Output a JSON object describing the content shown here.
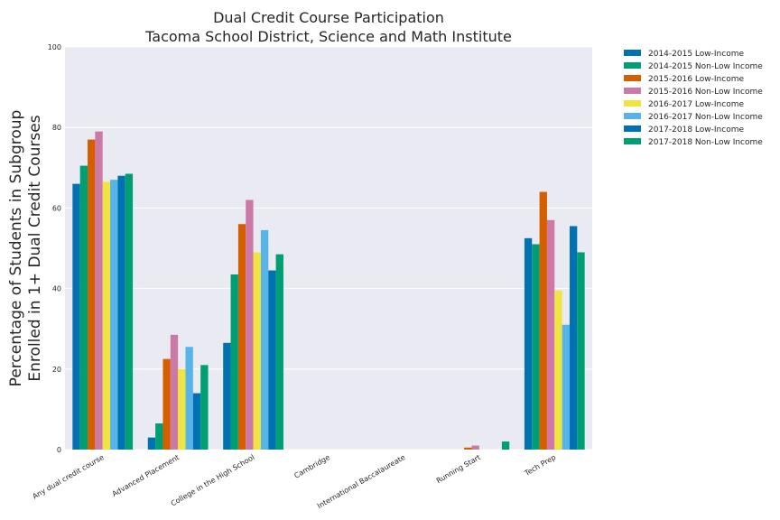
{
  "chart_data": {
    "type": "bar",
    "title": "Dual Credit Course Participation",
    "subtitle": "Tacoma School District, Science and Math Institute",
    "ylabel_line1": "Percentage of Students in Subgroup",
    "ylabel_line2": "Enrolled in 1+ Dual Credit Courses",
    "xlabel": "",
    "ylim": [
      0,
      100
    ],
    "yticks": [
      "0",
      "20",
      "40",
      "60",
      "80",
      "100"
    ],
    "grid": true,
    "legend_position": "outside-top-right",
    "categories": [
      "Any dual credit course",
      "Advanced Placement",
      "College in the High School",
      "Cambridge",
      "International Baccalaureate",
      "Running Start",
      "Tech Prep"
    ],
    "series": [
      {
        "name": "2014-2015 Low-Income",
        "color": "#0072b2",
        "values": [
          66,
          3,
          26.5,
          0,
          0,
          0,
          52.5
        ]
      },
      {
        "name": "2014-2015 Non-Low Income",
        "color": "#009e73",
        "values": [
          70.5,
          6.5,
          43.5,
          0,
          0,
          0,
          51
        ]
      },
      {
        "name": "2015-2016 Low-Income",
        "color": "#d55e00",
        "values": [
          77,
          22.5,
          56,
          0,
          0,
          0.5,
          64
        ]
      },
      {
        "name": "2015-2016 Non-Low Income",
        "color": "#cc79a7",
        "values": [
          79,
          28.5,
          62,
          0,
          0,
          1,
          57
        ]
      },
      {
        "name": "2016-2017 Low-Income",
        "color": "#f0e442",
        "values": [
          66.5,
          20,
          49,
          0,
          0,
          0,
          39.5
        ]
      },
      {
        "name": "2016-2017 Non-Low Income",
        "color": "#56b4e9",
        "values": [
          67,
          25.5,
          54.5,
          0,
          0,
          0,
          31
        ]
      },
      {
        "name": "2017-2018 Low-Income",
        "color": "#0072b2",
        "values": [
          68,
          14,
          44.5,
          0,
          0,
          0,
          55.5
        ]
      },
      {
        "name": "2017-2018 Non-Low Income",
        "color": "#009e73",
        "values": [
          68.5,
          21,
          48.5,
          0,
          0,
          2,
          49
        ]
      }
    ]
  },
  "colors": {
    "plot_background": "#eaeaf2",
    "grid": "#ffffff",
    "text": "#262626"
  }
}
